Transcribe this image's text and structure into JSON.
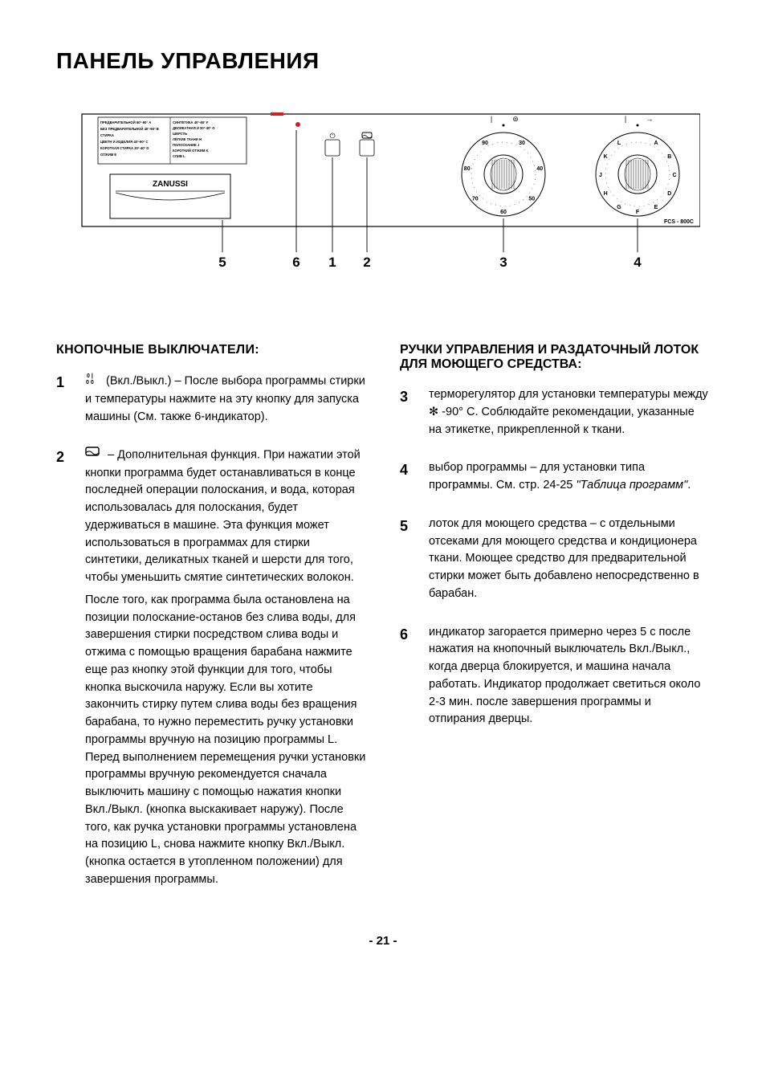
{
  "title": "ПАНЕЛЬ УПРАВЛЕНИЯ",
  "diagram": {
    "brand": "ZANUSSI",
    "model": "FCS - 800C",
    "panel_text": {
      "col1": [
        "ПРЕДВАРИТЕЛЬНОЙ 60°-90° A",
        "БЕЗ ПРЕДВАРИТЕЛЬНОЙ 40°-90° B",
        "СТИРКА",
        "ЦВЕТН И ИЗДЕЛИЯ 40°-60° C",
        "КОРОТКАЯ СТИРКА 30°-40° D",
        "ОТЖИМ E"
      ],
      "col2": [
        "СИНТЕТИКА 40°-60° F",
        "ДЕЛИКАТНАЯ И 30°-40° G",
        "ШЕРСТЬ ",
        "ЛЁГКИЕ ТКАНИ H",
        "ПОЛОСКАНИЕ J",
        "КОРОТКИЙ ОТЖИМ K",
        "СЛИВ L"
      ]
    },
    "markers": [
      "5",
      "6",
      "1",
      "2",
      "3",
      "4"
    ],
    "temp_dial": {
      "labels_top": [
        "|",
        "⊚"
      ],
      "labels_ring": [
        "30",
        "40",
        "50",
        "60",
        "70",
        "80",
        "90"
      ],
      "center_dot": "•"
    },
    "prog_dial": {
      "labels_top": [
        "|",
        "→"
      ],
      "labels_ring": [
        "A",
        "B",
        "C",
        "D",
        "E",
        "F",
        "G",
        "H",
        "J",
        "K",
        "L"
      ]
    },
    "marker_x": {
      "5": 195,
      "6": 287,
      "1": 332,
      "2": 375,
      "3": 545,
      "4": 712
    },
    "colors": {
      "stroke": "#000000",
      "bg": "#ffffff",
      "red": "#d02020"
    }
  },
  "left": {
    "heading": "КНОПОЧНЫЕ ВЫКЛЮЧАТЕЛИ:",
    "items": [
      {
        "num": "1",
        "icon": "power-icon",
        "body": "(Вкл./Выкл.) – После выбора программы стирки и температуры нажмите на эту кнопку для запуска машины (См. также 6-индикатор)."
      },
      {
        "num": "2",
        "icon": "rinse-hold-icon",
        "body": "– Дополнительная функция. При нажатии этой кнопки программа будет останавливаться в конце последней операции полоскания, и вода, которая использовалась для полоскания, будет удерживаться в машине. Эта функция может использоваться в программах для стирки синтетики, деликатных тканей и шерсти для того, чтобы уменьшить смятие синтетических волокон.",
        "body2": "После того, как программа была остановлена на позиции полоскание-останов без слива воды, для завершения стирки посредством слива воды и отжима с помощью вращения барабана нажмите еще раз кнопку этой функции для того, чтобы кнопка выскочила наружу. Если вы хотите закончить стирку путем  слива воды без вращения барабана, то нужно переместить ручку установки программы вручную на позицию программы L. Перед выполнением перемещения ручки установки программы вручную рекомендуется сначала выключить машину с помощью нажатия кнопки Вкл./Выкл. (кнопка выскакивает наружу). После того, как ручка установки программы установлена на позицию L, снова нажмите кнопку Вкл./Выкл. (кнопка остается в утопленном положении) для завершения программы."
      }
    ]
  },
  "right": {
    "heading1": "РУЧКИ УПРАВЛЕНИЯ И РАЗДАТОЧНЫЙ ЛОТОК",
    "heading2": "ДЛЯ МОЮЩЕГО СРЕДСТВА:",
    "items": [
      {
        "num": "3",
        "body_a": "терморегулятор для установки температуры между ",
        "snow": "✻",
        "body_b": " -90° С. Соблюдайте рекомендации, указанные на этикетке, прикрепленной к ткани."
      },
      {
        "num": "4",
        "body_a": "выбор программы – для установки типа программы. См. стр. 24-25 ",
        "italic": "\"Таблица программ\"",
        "body_b": "."
      },
      {
        "num": "5",
        "body": "лоток для моющего средства – с отдельными отсеками для моющего средства и кондиционера ткани. Моющее средство для предварительной стирки может быть добавлено непосредственно в барабан."
      },
      {
        "num": "6",
        "body": "индикатор загорается примерно через 5 с после нажатия на кнопочный выключатель Вкл./Выкл., когда дверца блокируется, и машина начала работать. Индикатор продолжает светиться около 2-3 мин. после завершения программы и отпирания дверцы."
      }
    ]
  },
  "pagenum": "- 21 -"
}
